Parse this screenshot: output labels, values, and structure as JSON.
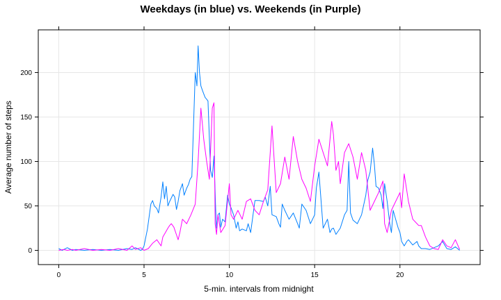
{
  "chart_data": {
    "type": "line",
    "title": "Weekdays (in blue) vs. Weekends (in Purple)",
    "xlabel": "5-min. intervals from midnight",
    "ylabel": "Average number of steps",
    "xlim": [
      -1.2,
      24.7
    ],
    "ylim": [
      -16,
      248
    ],
    "x_ticks": [
      "0",
      "5",
      "10",
      "15",
      "20"
    ],
    "y_ticks": [
      "0",
      "50",
      "100",
      "150",
      "200"
    ],
    "grid": true,
    "series": [
      {
        "color": "#0080ff",
        "x": [
          0,
          0.2,
          0.3,
          0.5,
          0.8,
          1.0,
          1.5,
          2.0,
          2.5,
          3.0,
          3.5,
          4.0,
          4.3,
          4.5,
          4.8,
          4.9,
          5.0,
          5.2,
          5.4,
          5.5,
          5.6,
          5.75,
          5.85,
          6.0,
          6.1,
          6.2,
          6.3,
          6.4,
          6.5,
          6.7,
          6.8,
          6.9,
          7.0,
          7.1,
          7.25,
          7.35,
          7.5,
          7.6,
          7.7,
          7.8,
          8.0,
          8.1,
          8.17,
          8.25,
          8.33,
          8.42,
          8.5,
          8.58,
          8.67,
          8.75,
          8.9,
          9.0,
          9.1,
          9.2,
          9.25,
          9.33,
          9.42,
          9.5,
          9.6,
          9.75,
          9.9,
          10.0,
          10.1,
          10.25,
          10.4,
          10.5,
          10.6,
          10.75,
          11.0,
          11.1,
          11.25,
          11.5,
          11.75,
          12.0,
          12.1,
          12.25,
          12.4,
          12.5,
          12.75,
          12.9,
          13.0,
          13.1,
          13.25,
          13.5,
          13.75,
          14.0,
          14.1,
          14.25,
          14.5,
          14.75,
          15.0,
          15.1,
          15.25,
          15.5,
          15.75,
          15.9,
          16.0,
          16.1,
          16.25,
          16.5,
          16.75,
          16.9,
          17.0,
          17.1,
          17.25,
          17.5,
          17.75,
          18.0,
          18.1,
          18.25,
          18.4,
          18.5,
          18.6,
          18.75,
          18.9,
          19.0,
          19.1,
          19.25,
          19.4,
          19.5,
          19.6,
          19.75,
          19.9,
          20.0,
          20.1,
          20.25,
          20.4,
          20.5,
          20.75,
          21.0,
          21.1,
          21.25,
          21.5,
          21.75,
          22.0,
          22.25,
          22.5,
          22.75,
          23.0,
          23.25,
          23.5
        ],
        "y": [
          2,
          0,
          1,
          3,
          0,
          1,
          0,
          1,
          0,
          1,
          0,
          2,
          1,
          3,
          0,
          1,
          5,
          24,
          52,
          56,
          50,
          47,
          42,
          60,
          77,
          58,
          72,
          50,
          55,
          63,
          60,
          46,
          55,
          67,
          75,
          62,
          70,
          74,
          80,
          83,
          200,
          185,
          230,
          200,
          185,
          180,
          176,
          172,
          170,
          168,
          90,
          82,
          106,
          45,
          25,
          40,
          42,
          26,
          35,
          32,
          62,
          52,
          48,
          40,
          25,
          32,
          22,
          24,
          22,
          30,
          20,
          56,
          56,
          55,
          60,
          50,
          72,
          40,
          38,
          30,
          26,
          52,
          45,
          35,
          42,
          30,
          25,
          52,
          45,
          30,
          40,
          70,
          88,
          25,
          35,
          20,
          24,
          25,
          18,
          25,
          40,
          45,
          100,
          42,
          34,
          30,
          40,
          62,
          78,
          88,
          115,
          97,
          72,
          70,
          62,
          47,
          75,
          55,
          30,
          20,
          45,
          35,
          25,
          20,
          10,
          5,
          10,
          12,
          6,
          10,
          5,
          2,
          2,
          1,
          3,
          5,
          10,
          2,
          1,
          4,
          0
        ]
      },
      {
        "color": "#ff00ff",
        "x": [
          0,
          0.3,
          0.5,
          0.8,
          1.0,
          1.5,
          2.0,
          2.5,
          3.0,
          3.5,
          4.0,
          4.3,
          4.5,
          4.8,
          5.0,
          5.25,
          5.5,
          5.75,
          6.0,
          6.1,
          6.25,
          6.4,
          6.5,
          6.6,
          6.75,
          7.0,
          7.1,
          7.25,
          7.5,
          7.75,
          8.0,
          8.17,
          8.33,
          8.5,
          8.67,
          8.83,
          9.0,
          9.1,
          9.17,
          9.25,
          9.33,
          9.5,
          9.75,
          10.0,
          10.1,
          10.25,
          10.5,
          10.75,
          11.0,
          11.25,
          11.5,
          11.75,
          12.0,
          12.25,
          12.5,
          12.75,
          13.0,
          13.25,
          13.5,
          13.75,
          14.0,
          14.25,
          14.5,
          14.75,
          15.0,
          15.25,
          15.5,
          15.75,
          16.0,
          16.1,
          16.25,
          16.4,
          16.5,
          16.75,
          17.0,
          17.25,
          17.5,
          17.75,
          18.0,
          18.25,
          18.5,
          18.75,
          19.0,
          19.1,
          19.25,
          19.5,
          19.75,
          20.0,
          20.1,
          20.25,
          20.5,
          20.75,
          21.0,
          21.1,
          21.25,
          21.5,
          21.75,
          22.0,
          22.25,
          22.5,
          22.75,
          23.0,
          23.25,
          23.5
        ],
        "y": [
          0,
          1,
          0,
          1,
          0,
          2,
          0,
          1,
          0,
          2,
          0,
          5,
          1,
          3,
          0,
          2,
          8,
          12,
          5,
          15,
          20,
          25,
          28,
          30,
          26,
          12,
          20,
          35,
          30,
          40,
          52,
          100,
          160,
          125,
          100,
          80,
          160,
          166,
          30,
          18,
          40,
          20,
          28,
          75,
          40,
          35,
          45,
          35,
          55,
          58,
          45,
          40,
          55,
          68,
          140,
          65,
          75,
          105,
          80,
          128,
          100,
          80,
          70,
          55,
          95,
          125,
          110,
          95,
          145,
          130,
          90,
          100,
          75,
          110,
          120,
          105,
          80,
          110,
          90,
          45,
          55,
          65,
          78,
          30,
          20,
          45,
          55,
          65,
          48,
          86,
          55,
          35,
          30,
          28,
          28,
          15,
          5,
          2,
          1,
          12,
          5,
          3,
          12,
          1
        ]
      }
    ]
  }
}
